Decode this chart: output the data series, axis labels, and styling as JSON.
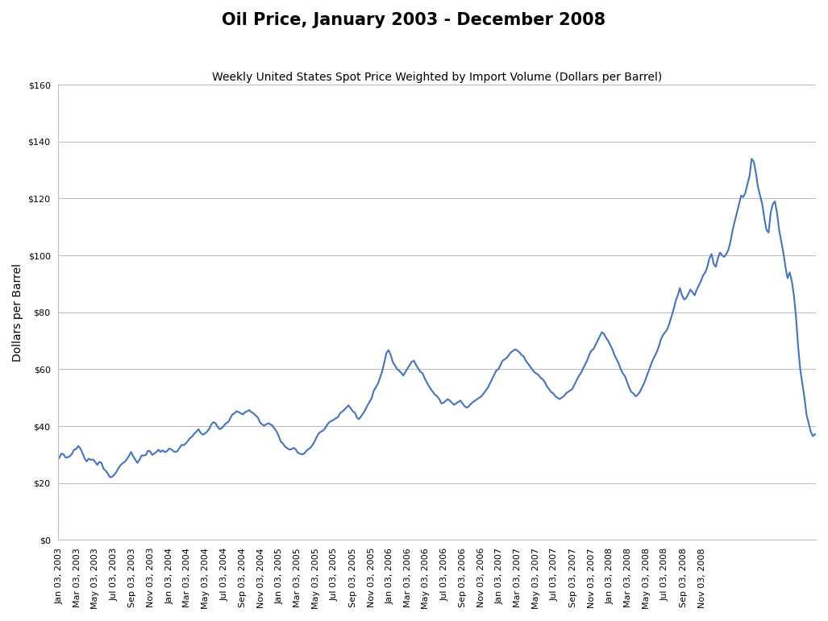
{
  "title": "Oil Price, January 2003 - December 2008",
  "subtitle": "Weekly United States Spot Price Weighted by Import Volume (Dollars per Barrel)",
  "ylabel": "Dollars per Barrel",
  "ylim": [
    0,
    160
  ],
  "yticks": [
    0,
    20,
    40,
    60,
    80,
    100,
    120,
    140,
    160
  ],
  "line_color": "#4472C4",
  "line_width": 1.5,
  "background_color": "#FFFFFF",
  "title_fontsize": 15,
  "subtitle_fontsize": 10,
  "ylabel_fontsize": 10,
  "tick_label_fontsize": 8,
  "text_color": "#000000",
  "grid_color": "#BFBFBF",
  "start_date": "2003-01-03",
  "prices": [
    28.83,
    30.35,
    30.13,
    28.94,
    29.07,
    29.4,
    30.27,
    31.7,
    31.99,
    33.04,
    32.12,
    30.51,
    28.65,
    27.62,
    28.59,
    28.14,
    28.28,
    27.46,
    26.36,
    27.46,
    27.08,
    24.97,
    24.36,
    23.29,
    22.06,
    22.15,
    22.89,
    23.83,
    25.2,
    26.27,
    26.94,
    27.46,
    28.38,
    29.53,
    30.91,
    29.39,
    28.26,
    27.08,
    28.18,
    29.7,
    29.66,
    29.89,
    31.34,
    31.17,
    29.89,
    30.35,
    30.91,
    31.7,
    30.94,
    31.53,
    30.91,
    31.17,
    32.12,
    31.9,
    31.22,
    30.91,
    31.22,
    32.38,
    33.44,
    33.29,
    34.0,
    34.88,
    35.86,
    36.39,
    37.43,
    38.09,
    38.94,
    37.6,
    37.01,
    37.43,
    38.09,
    38.94,
    40.62,
    41.44,
    41.03,
    39.73,
    38.94,
    39.33,
    40.15,
    41.03,
    41.44,
    42.8,
    44.11,
    44.51,
    45.23,
    44.92,
    44.51,
    44.11,
    44.92,
    45.23,
    45.64,
    44.92,
    44.51,
    43.79,
    43.14,
    41.44,
    40.62,
    40.21,
    40.62,
    41.03,
    40.62,
    40.21,
    39.07,
    38.09,
    36.37,
    34.5,
    33.85,
    32.76,
    32.23,
    31.76,
    31.9,
    32.38,
    31.9,
    30.62,
    30.35,
    30.08,
    30.35,
    31.23,
    31.9,
    32.38,
    33.44,
    34.71,
    36.28,
    37.5,
    38.09,
    38.5,
    39.33,
    40.62,
    41.44,
    41.82,
    42.23,
    42.8,
    43.14,
    44.51,
    45.1,
    45.74,
    46.5,
    47.3,
    46.3,
    45.2,
    44.8,
    43.0,
    42.5,
    43.5,
    44.5,
    45.8,
    47.3,
    48.5,
    49.9,
    52.5,
    53.7,
    55.0,
    57.15,
    59.3,
    62.5,
    65.78,
    66.71,
    65.0,
    62.5,
    61.3,
    60.1,
    59.5,
    58.7,
    57.8,
    59.1,
    60.3,
    61.5,
    62.7,
    63.0,
    61.5,
    60.3,
    59.1,
    58.7,
    57.0,
    55.5,
    54.2,
    53.0,
    52.0,
    51.0,
    50.5,
    49.5,
    48.0,
    48.2,
    48.8,
    49.5,
    49.0,
    48.2,
    47.5,
    48.0,
    48.5,
    49.0,
    48.0,
    47.0,
    46.5,
    47.0,
    47.8,
    48.5,
    49.0,
    49.5,
    50.0,
    50.5,
    51.5,
    52.5,
    53.5,
    55.0,
    56.5,
    58.0,
    59.5,
    60.0,
    61.5,
    63.0,
    63.5,
    64.0,
    65.0,
    66.0,
    66.5,
    67.0,
    66.5,
    66.0,
    65.0,
    64.5,
    63.0,
    62.0,
    61.0,
    60.0,
    59.0,
    58.5,
    58.0,
    57.0,
    56.5,
    55.5,
    54.0,
    53.0,
    52.0,
    51.5,
    50.5,
    50.0,
    49.5,
    50.0,
    50.5,
    51.5,
    52.0,
    52.5,
    53.0,
    54.5,
    56.0,
    57.5,
    58.5,
    60.0,
    61.5,
    63.0,
    65.0,
    66.5,
    67.0,
    68.5,
    70.0,
    71.5,
    73.0,
    72.5,
    71.0,
    70.0,
    68.5,
    67.0,
    65.0,
    63.5,
    62.0,
    60.0,
    58.5,
    57.5,
    55.5,
    53.5,
    52.0,
    51.5,
    50.5,
    51.0,
    52.0,
    53.5,
    55.0,
    57.0,
    59.0,
    61.0,
    63.0,
    64.5,
    66.0,
    68.0,
    70.5,
    72.0,
    73.0,
    74.0,
    76.0,
    78.5,
    81.0,
    84.0,
    86.0,
    88.5,
    86.0,
    84.5,
    85.0,
    86.5,
    88.0,
    87.0,
    86.0,
    88.0,
    89.5,
    91.0,
    93.0,
    94.0,
    96.0,
    99.0,
    100.5,
    97.0,
    96.0,
    99.0,
    101.0,
    100.0,
    99.5,
    100.5,
    102.0,
    105.0,
    109.0,
    112.0,
    115.0,
    118.0,
    121.0,
    120.5,
    122.0,
    125.0,
    128.0,
    133.93,
    133.0,
    129.0,
    124.0,
    121.0,
    118.0,
    113.0,
    109.0,
    108.0,
    115.0,
    118.0,
    119.0,
    115.0,
    109.0,
    105.0,
    101.0,
    96.0,
    92.0,
    94.0,
    91.0,
    86.0,
    78.5,
    68.0,
    60.0,
    55.0,
    50.0,
    44.0,
    41.0,
    38.0,
    36.5,
    37.2
  ],
  "xtick_dates": [
    "2003-01-03",
    "2003-03-03",
    "2003-05-03",
    "2003-07-03",
    "2003-09-03",
    "2003-11-03",
    "2004-01-03",
    "2004-03-03",
    "2004-05-03",
    "2004-07-03",
    "2004-09-03",
    "2004-11-03",
    "2005-01-03",
    "2005-03-03",
    "2005-05-03",
    "2005-07-03",
    "2005-09-03",
    "2005-11-03",
    "2006-01-03",
    "2006-03-03",
    "2006-05-03",
    "2006-07-03",
    "2006-09-03",
    "2006-11-03",
    "2007-01-03",
    "2007-03-03",
    "2007-05-03",
    "2007-07-03",
    "2007-09-03",
    "2007-11-03",
    "2008-01-03",
    "2008-03-03",
    "2008-05-03",
    "2008-07-03",
    "2008-09-03",
    "2008-11-03"
  ]
}
